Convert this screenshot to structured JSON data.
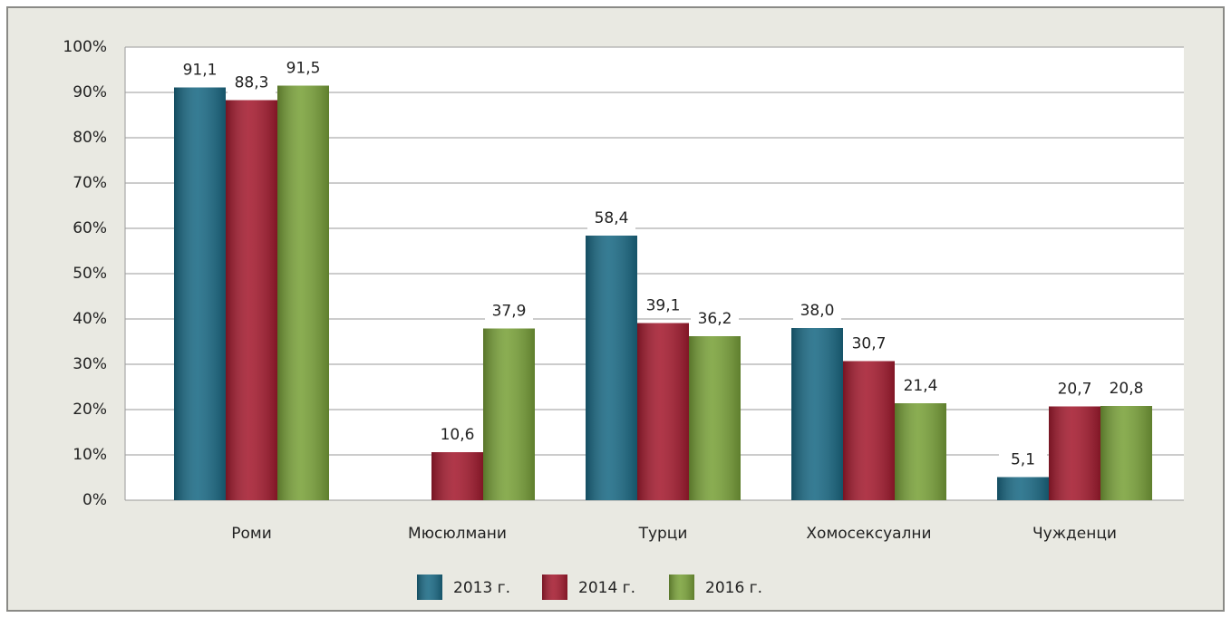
{
  "chart_data": {
    "type": "bar",
    "categories": [
      "Роми",
      "Мюсюлмани",
      "Турци",
      "Хомосексуални",
      "Чужденци"
    ],
    "series": [
      {
        "name": "2013 г.",
        "color": "#1b6a85",
        "values": [
          91.1,
          null,
          58.4,
          38.0,
          5.1
        ],
        "value_labels": [
          "91,1",
          null,
          "58,4",
          "38,0",
          "5,1"
        ]
      },
      {
        "name": "2014 г.",
        "color": "#a51c30",
        "values": [
          88.3,
          10.6,
          39.1,
          30.7,
          20.7
        ],
        "value_labels": [
          "88,3",
          "10,6",
          "39,1",
          "30,7",
          "20,7"
        ]
      },
      {
        "name": "2016 г.",
        "color": "#7aa23a",
        "values": [
          91.5,
          37.9,
          36.2,
          21.4,
          20.8
        ],
        "value_labels": [
          "91,5",
          "37,9",
          "36,2",
          "21,4",
          "20,8"
        ]
      }
    ],
    "ylim": [
      0,
      100
    ],
    "yticks": [
      {
        "value": 0,
        "label": "0%"
      },
      {
        "value": 10,
        "label": "10%"
      },
      {
        "value": 20,
        "label": "20%"
      },
      {
        "value": 30,
        "label": "30%"
      },
      {
        "value": 40,
        "label": "40%"
      },
      {
        "value": 50,
        "label": "50%"
      },
      {
        "value": 60,
        "label": "60%"
      },
      {
        "value": 70,
        "label": "70%"
      },
      {
        "value": 80,
        "label": "80%"
      },
      {
        "value": 90,
        "label": "90%"
      },
      {
        "value": 100,
        "label": "100%"
      }
    ],
    "grid": true,
    "legend": "bottom"
  }
}
